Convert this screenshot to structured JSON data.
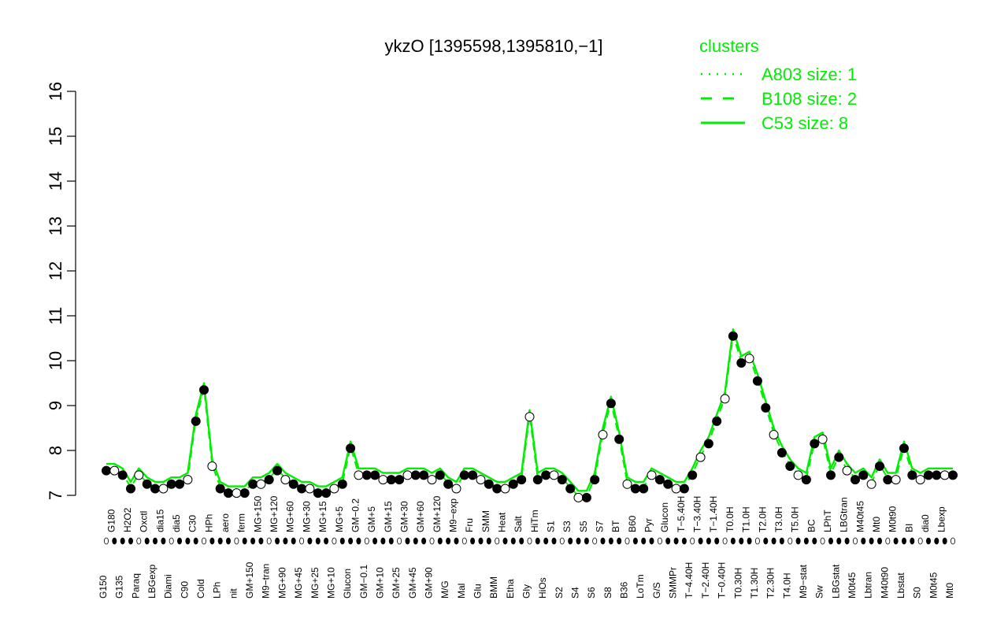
{
  "chart_data": {
    "type": "line",
    "title": "ykzO [1395598,1395810,−1]",
    "xlabel": "",
    "ylabel": "",
    "ylim": [
      7,
      16
    ],
    "yticks": [
      7,
      8,
      9,
      10,
      11,
      12,
      13,
      14,
      15,
      16
    ],
    "grid": false,
    "colors": {
      "series": "#00ee00",
      "axis": "#000000",
      "point_open": "#ffffff",
      "point_filled": "#000000"
    },
    "legend": {
      "title": "clusters",
      "placement": "top-right",
      "entries": [
        {
          "label": "A803 size: 1",
          "style": "dotted"
        },
        {
          "label": "B108 size: 2",
          "style": "dashed"
        },
        {
          "label": "C53 size: 8",
          "style": "solid"
        }
      ]
    },
    "x_tick_labels": [
      "G150",
      "G180",
      "G135",
      "H2O2",
      "Paraq",
      "Oxctl",
      "LBGexp",
      "dia15",
      "Diami",
      "dia5",
      "C90",
      "C30",
      "Cold",
      "HPh",
      "LPh",
      "aero",
      "nit",
      "ferm",
      "GM+150",
      "MG+150",
      "M9−tran",
      "MG+120",
      "MG+90",
      "MG+60",
      "MG+45",
      "MG+30",
      "MG+25",
      "MG+15",
      "MG+10",
      "MG+5",
      "Glucon",
      "GM−0.2",
      "GM−0.1",
      "GM+5",
      "GM+10",
      "GM+15",
      "GM+25",
      "GM+30",
      "GM+45",
      "GM+60",
      "GM+90",
      "GM+120",
      "M/G",
      "M9−exp",
      "Mal",
      "Fru",
      "Glu",
      "SMM",
      "BMM",
      "Heat",
      "Etha",
      "Salt",
      "Gly",
      "HiTm",
      "HiOs",
      "S1",
      "S2",
      "S3",
      "S4",
      "S5",
      "S6",
      "S7",
      "S8",
      "BT",
      "B36",
      "B60",
      "LoTm",
      "Pyr",
      "G/S",
      "Glucon",
      "SMMPr",
      "T−5.40H",
      "T−4.40H",
      "T−3.40H",
      "T−2.40H",
      "T−1.40H",
      "T−0.40H",
      "T0.0H",
      "T0.30H",
      "T1.0H",
      "T1.30H",
      "T2.0H",
      "T2.30H",
      "T3.0H",
      "T4.0H",
      "T5.0H",
      "M9−stat",
      "BC",
      "Sw",
      "LPhT",
      "LBGstat",
      "LBGtran",
      "M0t45",
      "M40t45",
      "Lbtran",
      "Mt0",
      "M40t90",
      "M0t90",
      "Lbstat",
      "BI",
      "S0",
      "dia0",
      "M0t45",
      "Lbexp",
      "Mt0"
    ],
    "series": [
      {
        "values": [
          7.7,
          7.7,
          7.6,
          7.3,
          7.6,
          7.4,
          7.3,
          7.3,
          7.4,
          7.4,
          7.5,
          8.8,
          9.5,
          7.8,
          7.3,
          7.2,
          7.2,
          7.2,
          7.4,
          7.4,
          7.5,
          7.7,
          7.5,
          7.4,
          7.3,
          7.3,
          7.2,
          7.2,
          7.3,
          7.4,
          8.2,
          7.6,
          7.6,
          7.6,
          7.5,
          7.5,
          7.5,
          7.6,
          7.6,
          7.6,
          7.5,
          7.6,
          7.4,
          7.3,
          7.6,
          7.6,
          7.5,
          7.4,
          7.3,
          7.3,
          7.4,
          7.5,
          8.9,
          7.5,
          7.6,
          7.6,
          7.5,
          7.3,
          7.1,
          7.1,
          7.5,
          8.5,
          9.2,
          8.4,
          7.4,
          7.3,
          7.3,
          7.6,
          7.5,
          7.4,
          7.3,
          7.3,
          7.6,
          8.0,
          8.3,
          8.8,
          9.3,
          10.7,
          10.1,
          10.2,
          9.7,
          9.1,
          8.5,
          8.1,
          7.8,
          7.6,
          7.5,
          8.3,
          8.4,
          7.6,
          8.0,
          7.7,
          7.5,
          7.6,
          7.4,
          7.8,
          7.5,
          7.5,
          8.2,
          7.6,
          7.5,
          7.6,
          7.6,
          7.6,
          7.6
        ]
      }
    ]
  }
}
